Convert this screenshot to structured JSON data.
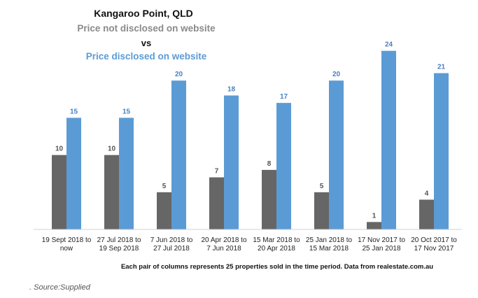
{
  "chart_data": {
    "type": "bar",
    "title": "Kangaroo Point, QLD",
    "subtitle_line1": "Price not disclosed on website",
    "subtitle_vs": "vs",
    "subtitle_line2": "Price disclosed on website",
    "categories": [
      [
        "19 Sept 2018 to",
        "now"
      ],
      [
        "27 Jul 2018 to",
        "19 Sep 2018"
      ],
      [
        "7 Jun 2018 to",
        "27 Jul 2018"
      ],
      [
        "20 Apr 2018 to",
        "7 Jun 2018"
      ],
      [
        "15 Mar 2018 to",
        "20 Apr 2018"
      ],
      [
        "25 Jan 2018 to",
        "15 Mar 2018"
      ],
      [
        "17 Nov 2017 to",
        "25 Jan 2018"
      ],
      [
        "20 Oct 2017 to",
        "17 Nov  2017"
      ]
    ],
    "series": [
      {
        "name": "Price not disclosed on website",
        "color": "#666666",
        "label_color": "#555555",
        "values": [
          10,
          10,
          5,
          7,
          8,
          5,
          1,
          4
        ]
      },
      {
        "name": "Price disclosed on website",
        "color": "#5b9bd5",
        "label_color": "#4a7fc1",
        "values": [
          15,
          15,
          20,
          18,
          17,
          20,
          24,
          21
        ]
      }
    ],
    "ylim": [
      0,
      25
    ],
    "grid": false,
    "footnote": "Each pair of columns represents 25 properties sold in the time period. Data from realestate.com.au"
  },
  "source_caption": ". Source:Supplied"
}
